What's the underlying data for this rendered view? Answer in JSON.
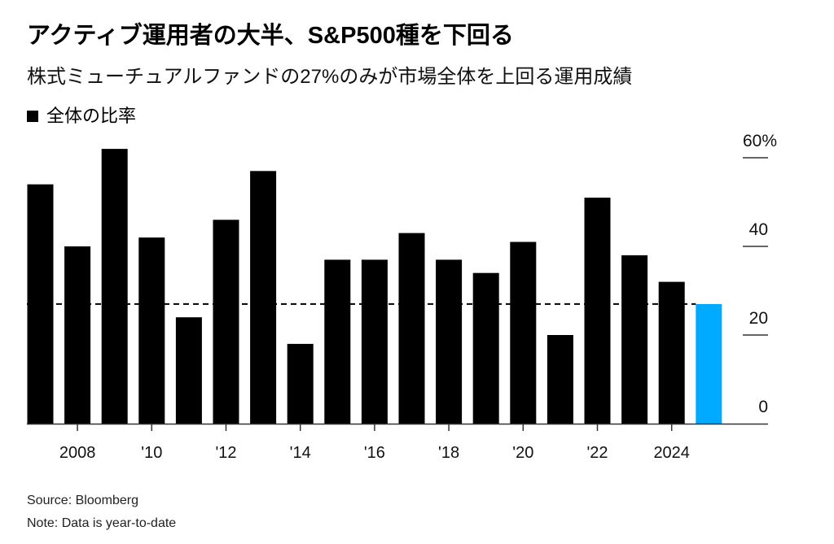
{
  "header": {
    "title": "アクティブ運用者の大半、S&P500種を下回る",
    "subtitle": "株式ミューチュアルファンドの27%のみが市場全体を上回る運用成績",
    "legend_label": "全体の比率"
  },
  "footer": {
    "source": "Source: Bloomberg",
    "note": "Note: Data is year-to-date"
  },
  "colors": {
    "bar": "#000000",
    "highlight_bar": "#00AAFF",
    "reference_line": "#000000"
  },
  "chart_data": {
    "type": "bar",
    "title": "アクティブ運用者の大半、S&P500種を下回る",
    "subtitle": "株式ミューチュアルファンドの27%のみが市場全体を上回る運用成績",
    "xlabel": "",
    "ylabel": "",
    "legend": [
      "全体の比率"
    ],
    "legend_position": "top-left",
    "categories": [
      2007,
      2008,
      2009,
      2010,
      2011,
      2012,
      2013,
      2014,
      2015,
      2016,
      2017,
      2018,
      2019,
      2020,
      2021,
      2022,
      2023,
      2024,
      2025
    ],
    "values": [
      54,
      40,
      62,
      42,
      24,
      46,
      57,
      18,
      37,
      37,
      43,
      37,
      34,
      41,
      20,
      51,
      38,
      32,
      27
    ],
    "highlight_category": 2025,
    "reference_line": {
      "value": 27,
      "style": "dashed"
    },
    "ylim": [
      0,
      60
    ],
    "y_ticks": [
      0,
      20,
      40,
      60
    ],
    "y_tick_labels": [
      "0",
      "20",
      "40",
      "60%"
    ],
    "y_axis_side": "right",
    "x_ticks": [
      2008,
      2010,
      2012,
      2014,
      2016,
      2018,
      2020,
      2022,
      2024
    ],
    "x_tick_labels": [
      "2008",
      "'10",
      "'12",
      "'14",
      "'16",
      "'18",
      "'20",
      "'22",
      "2024"
    ],
    "grid": false
  }
}
